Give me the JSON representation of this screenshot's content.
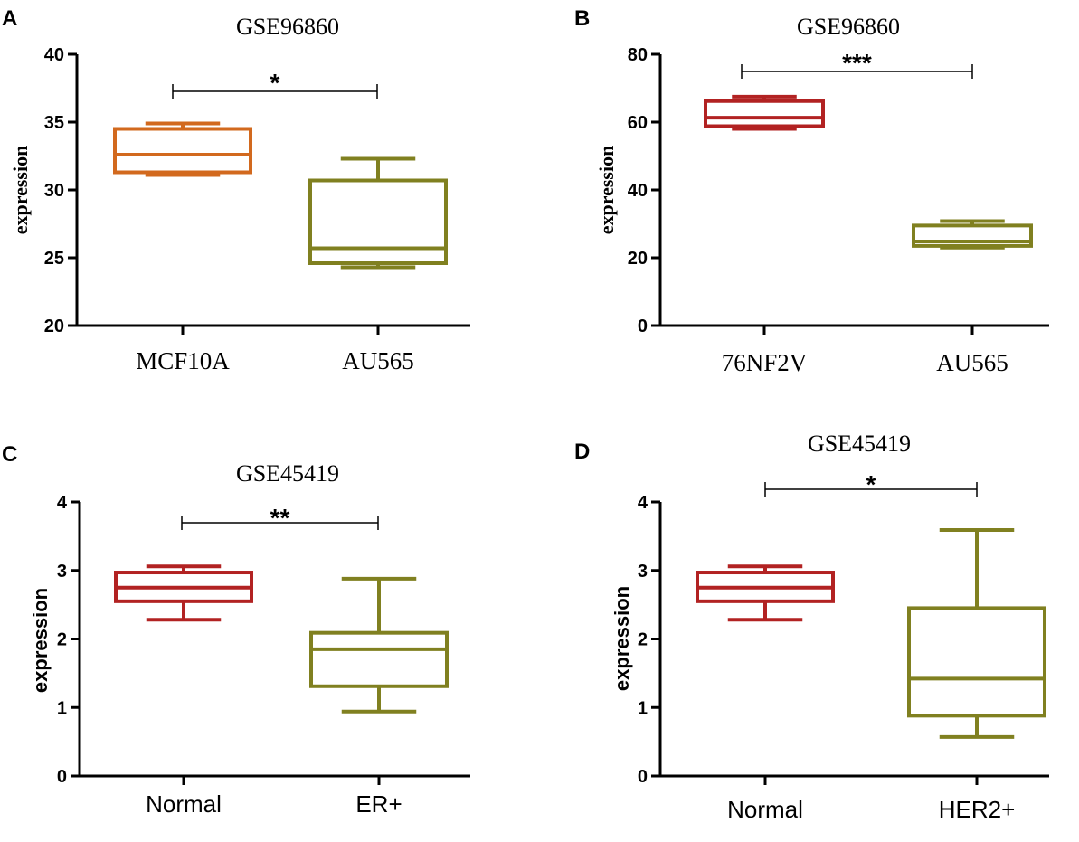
{
  "chart_data": [
    {
      "type": "box",
      "panel_label": "A",
      "title": "GSE96860",
      "ylabel": "expression",
      "ylim": [
        20,
        40
      ],
      "yticks": [
        "20",
        "25",
        "30",
        "35",
        "40"
      ],
      "categories": [
        "MCF10A",
        "AU565"
      ],
      "colors": [
        "#D2691E",
        "#808020"
      ],
      "boxes": [
        {
          "min": 31.1,
          "q1": 31.3,
          "median": 32.6,
          "q3": 34.5,
          "max": 34.9
        },
        {
          "min": 24.3,
          "q1": 24.6,
          "median": 25.7,
          "q3": 30.7,
          "max": 32.3
        }
      ],
      "significance": "*",
      "serif_font": true
    },
    {
      "type": "box",
      "panel_label": "B",
      "title": "GSE96860",
      "ylabel": "expression",
      "ylim": [
        0,
        80
      ],
      "yticks": [
        "0",
        "20",
        "40",
        "60",
        "80"
      ],
      "categories": [
        "76NF2V",
        "AU565"
      ],
      "colors": [
        "#B22222",
        "#808020"
      ],
      "boxes": [
        {
          "min": 58.0,
          "q1": 58.8,
          "median": 61.3,
          "q3": 66.2,
          "max": 67.5
        },
        {
          "min": 23.0,
          "q1": 23.5,
          "median": 24.8,
          "q3": 29.5,
          "max": 30.8
        }
      ],
      "significance": "***",
      "serif_font": true
    },
    {
      "type": "box",
      "panel_label": "C",
      "title": "GSE45419",
      "ylabel": "expression",
      "ylim": [
        0,
        4
      ],
      "yticks": [
        "0",
        "1",
        "2",
        "3",
        "4"
      ],
      "categories": [
        "Normal",
        "ER+"
      ],
      "colors": [
        "#B22222",
        "#808020"
      ],
      "boxes": [
        {
          "min": 2.28,
          "q1": 2.55,
          "median": 2.75,
          "q3": 2.97,
          "max": 3.06
        },
        {
          "min": 0.94,
          "q1": 1.31,
          "median": 1.85,
          "q3": 2.09,
          "max": 2.88
        }
      ],
      "significance": "**",
      "serif_font": false
    },
    {
      "type": "box",
      "panel_label": "D",
      "title": "GSE45419",
      "ylabel": "expression",
      "ylim": [
        0,
        4
      ],
      "yticks": [
        "0",
        "1",
        "2",
        "3",
        "4"
      ],
      "categories": [
        "Normal",
        "HER2+"
      ],
      "colors": [
        "#B22222",
        "#808020"
      ],
      "boxes": [
        {
          "min": 2.28,
          "q1": 2.55,
          "median": 2.75,
          "q3": 2.97,
          "max": 3.06
        },
        {
          "min": 0.57,
          "q1": 0.88,
          "median": 1.42,
          "q3": 2.45,
          "max": 3.59
        }
      ],
      "significance": "*",
      "serif_font": false
    }
  ]
}
